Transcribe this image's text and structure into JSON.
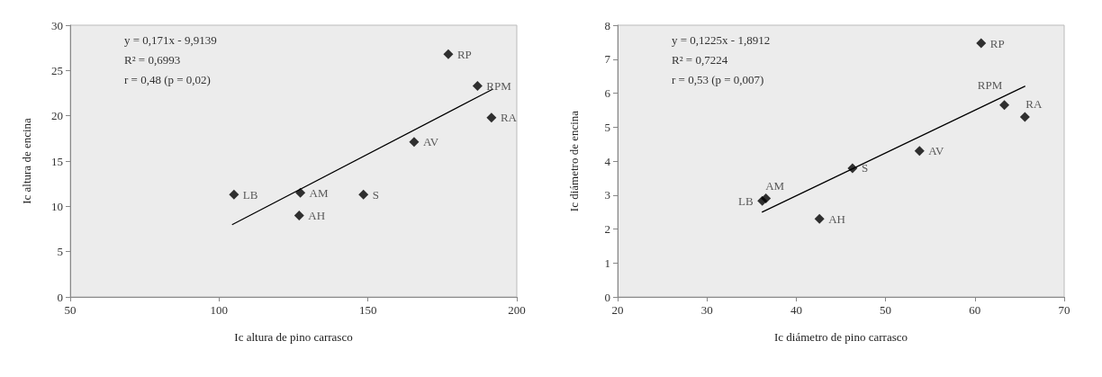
{
  "chart_data": [
    {
      "type": "scatter",
      "xlabel": "Ic altura de pino carrasco",
      "ylabel": "Ic altura de encina",
      "xlim": [
        50,
        200
      ],
      "xticks": [
        50,
        100,
        150,
        200
      ],
      "ylim": [
        0,
        30
      ],
      "yticks": [
        0,
        5,
        10,
        15,
        20,
        25,
        30
      ],
      "series": [
        {
          "marker": "diamond",
          "color": "#000000",
          "x": [
            105,
            127.3,
            126.9,
            148.5,
            165.5,
            177,
            186.8,
            191.5
          ],
          "values": [
            11.3,
            11.5,
            9.0,
            11.3,
            17.1,
            26.8,
            23.3,
            19.8
          ]
        },
        {
          "type": "line",
          "marker": "none",
          "color": "#000000",
          "x": [
            104.5,
            191.7
          ],
          "values": [
            8.0,
            22.9
          ]
        }
      ],
      "annotations": [
        "y = 0,171x - 9,9139",
        "R² = 0,6993",
        "r = 0,48 (p = 0,02)",
        {
          "text": "LB",
          "x": 105,
          "y": 11.3
        },
        {
          "text": "AM",
          "x": 127.3,
          "y": 11.5
        },
        {
          "text": "AH",
          "x": 126.9,
          "y": 9.0
        },
        {
          "text": "S",
          "x": 148.5,
          "y": 11.3
        },
        {
          "text": "AV",
          "x": 165.5,
          "y": 17.1
        },
        {
          "text": "RP",
          "x": 177,
          "y": 26.8
        },
        {
          "text": "RPM",
          "x": 186.8,
          "y": 23.3
        },
        {
          "text": "RA",
          "x": 191.5,
          "y": 19.8
        }
      ]
    },
    {
      "type": "scatter",
      "xlabel": "Ic diámetro de pino carrasco",
      "ylabel": "Ic diámetro de encina",
      "xlim": [
        20,
        70
      ],
      "xticks": [
        20,
        30,
        40,
        50,
        60,
        70
      ],
      "ylim": [
        0,
        8
      ],
      "yticks": [
        0,
        1,
        2,
        3,
        4,
        5,
        6,
        7,
        8
      ],
      "series": [
        {
          "marker": "diamond",
          "color": "#000000",
          "x": [
            36.2,
            36.6,
            42.6,
            46.3,
            53.8,
            60.7,
            63.3,
            65.6
          ],
          "values": [
            2.83,
            2.9,
            2.3,
            3.79,
            4.3,
            7.47,
            5.65,
            5.3
          ]
        },
        {
          "type": "line",
          "marker": "none",
          "color": "#000000",
          "x": [
            36.2,
            65.6
          ],
          "values": [
            2.5,
            6.2
          ]
        }
      ],
      "annotations": [
        "y = 0,1225x - 1,8912",
        "R² = 0,7224",
        "r = 0,53 (p = 0,007)",
        {
          "text": "LB",
          "x": 36.2,
          "y": 2.83
        },
        {
          "text": "AM",
          "x": 36.6,
          "y": 2.9
        },
        {
          "text": "AH",
          "x": 42.6,
          "y": 2.3
        },
        {
          "text": "S",
          "x": 46.3,
          "y": 3.79
        },
        {
          "text": "AV",
          "x": 53.8,
          "y": 4.3
        },
        {
          "text": "RP",
          "x": 60.7,
          "y": 7.47
        },
        {
          "text": "RPM",
          "x": 63.3,
          "y": 5.65
        },
        {
          "text": "RA",
          "x": 65.6,
          "y": 5.3
        }
      ]
    }
  ]
}
